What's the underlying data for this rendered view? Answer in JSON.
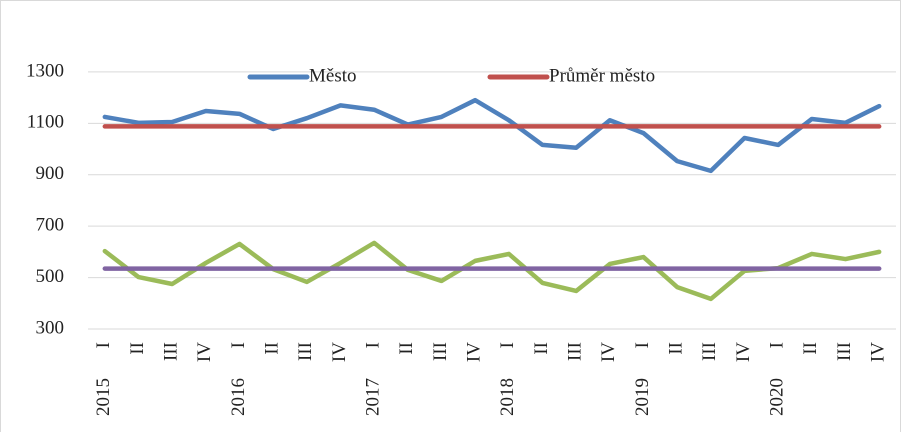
{
  "chart_data": {
    "type": "line",
    "categories": [
      "I",
      "II",
      "III",
      "IV",
      "I",
      "II",
      "III",
      "IV",
      "I",
      "II",
      "III",
      "IV",
      "I",
      "II",
      "III",
      "IV",
      "I",
      "II",
      "III",
      "IV",
      "I",
      "II",
      "III",
      "IV"
    ],
    "category_groups": [
      "2015",
      "2016",
      "2017",
      "2018",
      "2019",
      "2020"
    ],
    "series": [
      {
        "name": "Město",
        "color": "#4f81bd",
        "values": [
          1125,
          1102,
          1105,
          1148,
          1137,
          1078,
          1120,
          1170,
          1153,
          1095,
          1125,
          1190,
          1112,
          1016,
          1005,
          1112,
          1062,
          953,
          915,
          1043,
          1016,
          1117,
          1102,
          1167
        ]
      },
      {
        "name": "Průměr město",
        "color": "#c0504d",
        "values": [
          1088,
          1088,
          1088,
          1088,
          1088,
          1088,
          1088,
          1088,
          1088,
          1088,
          1088,
          1088,
          1088,
          1088,
          1088,
          1088,
          1088,
          1088,
          1088,
          1088,
          1088,
          1088,
          1088,
          1088
        ]
      },
      {
        "color": "#9bbb59",
        "values": [
          603,
          502,
          475,
          557,
          631,
          533,
          483,
          557,
          635,
          530,
          487,
          565,
          592,
          479,
          448,
          553,
          580,
          463,
          417,
          526,
          537,
          592,
          572,
          600
        ]
      },
      {
        "color": "#8064a2",
        "values": [
          535,
          535,
          535,
          535,
          535,
          535,
          535,
          535,
          535,
          535,
          535,
          535,
          535,
          535,
          535,
          535,
          535,
          535,
          535,
          535,
          535,
          535,
          535,
          535
        ]
      }
    ],
    "ylim": [
      300,
      1500
    ],
    "yticks": [
      300,
      500,
      700,
      900,
      1100,
      1300
    ],
    "grid": true,
    "legend": "top"
  }
}
